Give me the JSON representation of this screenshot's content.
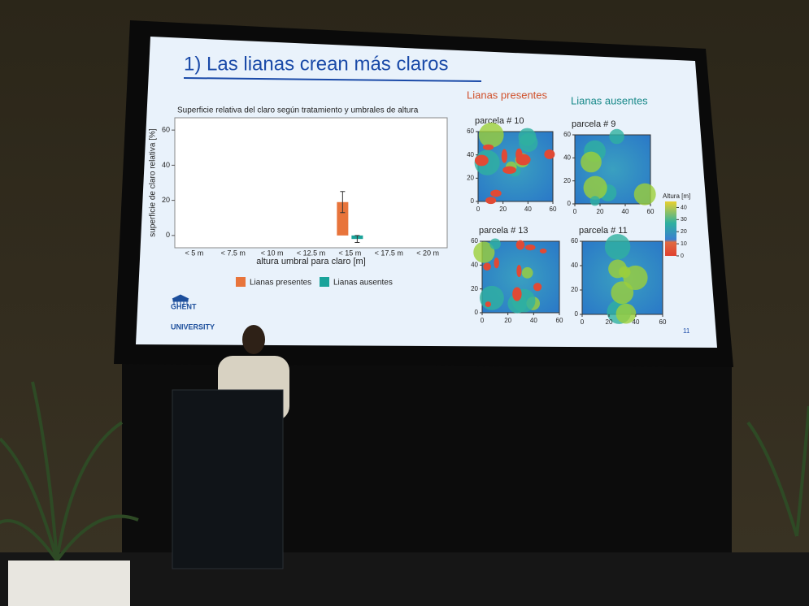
{
  "slide": {
    "title": "1) Las lianas crean más claros",
    "heading_left": "Lianas presentes",
    "heading_right": "Lianas ausentes",
    "logo": [
      "GHENT",
      "UNIVERSITY"
    ],
    "page_number": "11"
  },
  "chart_data": {
    "type": "bar",
    "title": "Superficie relativa del claro según tratamiento y umbrales de altura",
    "x_label": "altura umbral para claro [m]",
    "y_label": "superficie de claro relativa [%]",
    "categories": [
      "< 5 m",
      "< 7.5 m",
      "< 10 m",
      "< 12.5 m",
      "< 15 m",
      "< 17.5 m",
      "< 20 m"
    ],
    "series": [
      {
        "name": "Lianas presentes",
        "color": "#e8743b",
        "values": [
          null,
          null,
          null,
          null,
          19,
          null,
          null
        ],
        "errors": [
          null,
          null,
          null,
          null,
          6,
          null,
          null
        ]
      },
      {
        "name": "Lianas ausentes",
        "color": "#1aa39a",
        "values": [
          null,
          null,
          null,
          null,
          -2,
          null,
          null
        ],
        "errors": [
          null,
          null,
          null,
          null,
          2,
          null,
          null
        ]
      }
    ],
    "ylim": [
      -7,
      67
    ],
    "yticks": [
      0,
      20,
      40,
      60
    ],
    "grid": false
  },
  "maps": [
    {
      "title": "parcela # 10",
      "lianas": true,
      "lim": [
        0,
        60
      ],
      "xticks": [
        0,
        20,
        40,
        60
      ],
      "yticks": [
        0,
        20,
        40,
        60
      ]
    },
    {
      "title": "parcela # 9",
      "lianas": false,
      "lim": [
        0,
        60
      ],
      "xticks": [
        0,
        20,
        40,
        60
      ],
      "yticks": [
        0,
        20,
        40,
        60
      ]
    },
    {
      "title": "parcela # 13",
      "lianas": true,
      "lim": [
        0,
        60
      ],
      "xticks": [
        0,
        20,
        40,
        60
      ],
      "yticks": [
        0,
        20,
        40,
        60
      ]
    },
    {
      "title": "parcela # 11",
      "lianas": false,
      "lim": [
        0,
        60
      ],
      "xticks": [
        0,
        20,
        40,
        60
      ],
      "yticks": [
        0,
        20,
        40,
        60
      ]
    }
  ],
  "colorbar": {
    "title": "Altura [m]",
    "lim": [
      0,
      45
    ],
    "ticks": [
      0,
      10,
      20,
      30,
      40
    ]
  }
}
